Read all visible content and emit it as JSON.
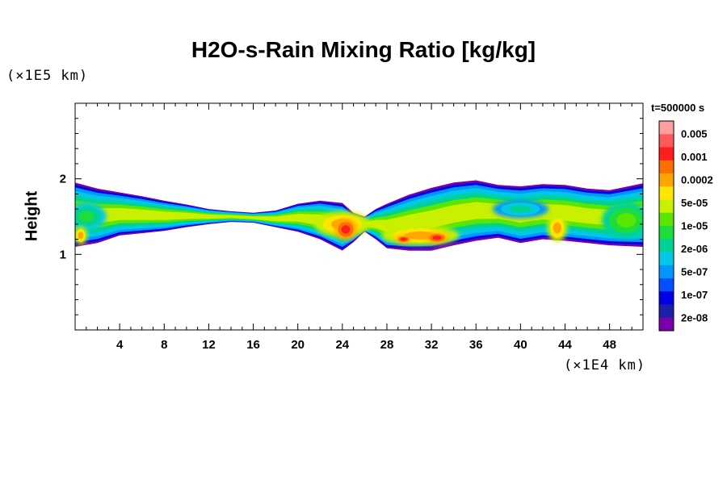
{
  "chart_data": {
    "type": "heatmap",
    "title": "H2O-s-Rain Mixing Ratio [kg/kg]",
    "ylabel": "Height",
    "y_unit_label": "(×1E5 km)",
    "x_unit_label": "(×1E4 km)",
    "time_label": "t=500000 s",
    "xlim": [
      0,
      51
    ],
    "ylim": [
      0,
      3
    ],
    "x_ticks": [
      4,
      8,
      12,
      16,
      20,
      24,
      28,
      32,
      36,
      40,
      44,
      48
    ],
    "x_tick_labels": [
      "4",
      "8",
      "12",
      "16",
      "20",
      "24",
      "28",
      "32",
      "36",
      "40",
      "44",
      "48"
    ],
    "y_ticks": [
      1,
      2
    ],
    "y_tick_labels": [
      "1",
      "2"
    ],
    "colorbar": {
      "labels": [
        "0.005",
        "0.001",
        "0.0002",
        "5e-05",
        "1e-05",
        "2e-06",
        "5e-07",
        "1e-07",
        "2e-08"
      ],
      "colors": [
        "#ffa0a0",
        "#ff5a5a",
        "#ff1e1e",
        "#ff6e00",
        "#ffa500",
        "#ffe600",
        "#c8f000",
        "#5ae600",
        "#1edc3c",
        "#00d296",
        "#00c8e6",
        "#0096ff",
        "#0050ff",
        "#0000e6",
        "#1e1eaa",
        "#7800aa"
      ]
    },
    "band": {
      "x": [
        0,
        2,
        4,
        6,
        8,
        10,
        12,
        14,
        16,
        18,
        20,
        22,
        24,
        25,
        26,
        27,
        28,
        30,
        32,
        34,
        36,
        38,
        40,
        42,
        44,
        46,
        48,
        51
      ],
      "top": [
        1.95,
        1.87,
        1.82,
        1.77,
        1.71,
        1.66,
        1.6,
        1.57,
        1.55,
        1.58,
        1.67,
        1.71,
        1.68,
        1.55,
        1.5,
        1.6,
        1.67,
        1.79,
        1.88,
        1.95,
        1.98,
        1.92,
        1.9,
        1.93,
        1.92,
        1.87,
        1.85,
        1.94
      ],
      "bottom": [
        1.1,
        1.15,
        1.25,
        1.28,
        1.31,
        1.36,
        1.4,
        1.43,
        1.42,
        1.36,
        1.3,
        1.2,
        1.05,
        1.16,
        1.3,
        1.2,
        1.08,
        1.05,
        1.05,
        1.12,
        1.18,
        1.22,
        1.15,
        1.2,
        1.18,
        1.15,
        1.12,
        1.1
      ]
    },
    "cores": [
      {
        "x": 1,
        "y": 1.5,
        "rx": 1.8,
        "ry": 0.18,
        "level": 8
      },
      {
        "x": 0.5,
        "y": 1.25,
        "rx": 0.6,
        "ry": 0.12,
        "level": 4
      },
      {
        "x": 24,
        "y": 1.4,
        "rx": 2.5,
        "ry": 0.17,
        "level": 4
      },
      {
        "x": 24.3,
        "y": 1.33,
        "rx": 1.0,
        "ry": 0.14,
        "level": 2
      },
      {
        "x": 31,
        "y": 1.25,
        "rx": 3.5,
        "ry": 0.13,
        "level": 4
      },
      {
        "x": 32.5,
        "y": 1.22,
        "rx": 1.0,
        "ry": 0.07,
        "level": 2
      },
      {
        "x": 29.5,
        "y": 1.2,
        "rx": 0.7,
        "ry": 0.05,
        "level": 2
      },
      {
        "x": 43.3,
        "y": 1.35,
        "rx": 0.9,
        "ry": 0.18,
        "level": 4
      },
      {
        "x": 49.5,
        "y": 1.45,
        "rx": 2.2,
        "ry": 0.24,
        "level": 7
      },
      {
        "x": 40,
        "y": 1.6,
        "rx": 2.5,
        "ry": 0.12,
        "level": 9
      }
    ]
  }
}
